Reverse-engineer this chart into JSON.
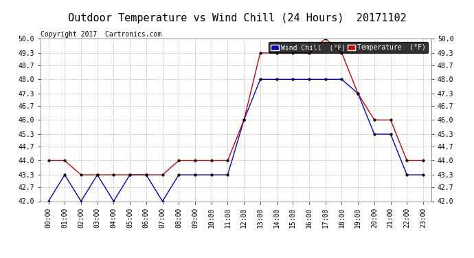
{
  "title": "Outdoor Temperature vs Wind Chill (24 Hours)  20171102",
  "copyright": "Copyright 2017  Cartronics.com",
  "hours": [
    "00:00",
    "01:00",
    "02:00",
    "03:00",
    "04:00",
    "05:00",
    "06:00",
    "07:00",
    "08:00",
    "09:00",
    "10:00",
    "11:00",
    "12:00",
    "13:00",
    "14:00",
    "15:00",
    "16:00",
    "17:00",
    "18:00",
    "19:00",
    "20:00",
    "21:00",
    "22:00",
    "23:00"
  ],
  "temperature": [
    44.0,
    44.0,
    43.3,
    43.3,
    43.3,
    43.3,
    43.3,
    43.3,
    44.0,
    44.0,
    44.0,
    44.0,
    46.0,
    49.3,
    49.3,
    49.3,
    49.3,
    50.0,
    49.3,
    47.3,
    46.0,
    46.0,
    44.0,
    44.0
  ],
  "wind_chill": [
    42.0,
    43.3,
    42.0,
    43.3,
    42.0,
    43.3,
    43.3,
    42.0,
    43.3,
    43.3,
    43.3,
    43.3,
    46.0,
    48.0,
    48.0,
    48.0,
    48.0,
    48.0,
    48.0,
    47.3,
    45.3,
    45.3,
    43.3,
    43.3
  ],
  "ylim": [
    42.0,
    50.0
  ],
  "yticks": [
    42.0,
    42.7,
    43.3,
    44.0,
    44.7,
    45.3,
    46.0,
    46.7,
    47.3,
    48.0,
    48.7,
    49.3,
    50.0
  ],
  "temp_color": "#cc0000",
  "wind_color": "#0000cc",
  "bg_color": "#ffffff",
  "plot_bg": "#ffffff",
  "grid_color": "#bbbbbb",
  "title_fontsize": 11,
  "label_fontsize": 7,
  "copyright_fontsize": 7,
  "legend_wind_bg": "#0000cc",
  "legend_temp_bg": "#cc0000"
}
